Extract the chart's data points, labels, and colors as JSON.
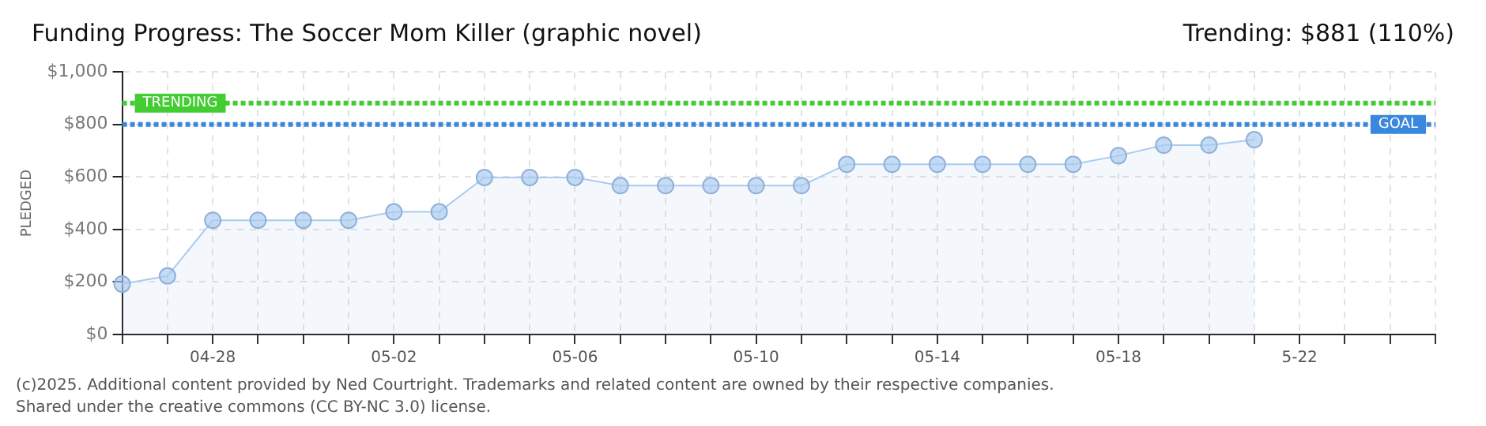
{
  "chart_data": {
    "type": "area",
    "title": "Funding Progress: The Soccer Mom Killer (graphic novel)",
    "subtitle": "Trending: $881 (110%)",
    "ylabel": "PLEDGED",
    "categories": [
      null,
      null,
      "04-28",
      null,
      null,
      null,
      "05-02",
      null,
      null,
      null,
      "05-06",
      null,
      null,
      null,
      "05-10",
      null,
      null,
      null,
      "05-14",
      null,
      null,
      null,
      "05-18",
      null,
      null,
      null,
      "5-22",
      null,
      null,
      null
    ],
    "series": [
      {
        "color": "#a9cbf0",
        "values": [
          192,
          223,
          435,
          435,
          435,
          435,
          467,
          467,
          598,
          598,
          598,
          567,
          567,
          567,
          567,
          567,
          648,
          648,
          648,
          648,
          648,
          648,
          681,
          721,
          721,
          742,
          null,
          null,
          null,
          null
        ]
      }
    ],
    "ylim": [
      0,
      1000
    ],
    "yticks": [
      {
        "value": 0,
        "label": "$0"
      },
      {
        "value": 200,
        "label": "$200"
      },
      {
        "value": 400,
        "label": "$400"
      },
      {
        "value": 600,
        "label": "$600"
      },
      {
        "value": 800,
        "label": "$800"
      },
      {
        "value": 1000,
        "label": "$1,000"
      }
    ],
    "ref_lines": [
      {
        "axis": "y",
        "value": 881,
        "label": "TRENDING",
        "color": "#44cc33",
        "line_style": "dashed"
      },
      {
        "axis": "y",
        "value": 800,
        "label": "GOAL",
        "color": "#3a88dd",
        "line_style": "dashed"
      }
    ],
    "grid": true,
    "marker": "circle",
    "legend": false,
    "annotations": [
      "(c)2025. Additional content provided by Ned Courtright. Trademarks and related content are owned by their respective companies.",
      "Shared under the creative commons (CC BY-NC 3.0) license."
    ]
  }
}
